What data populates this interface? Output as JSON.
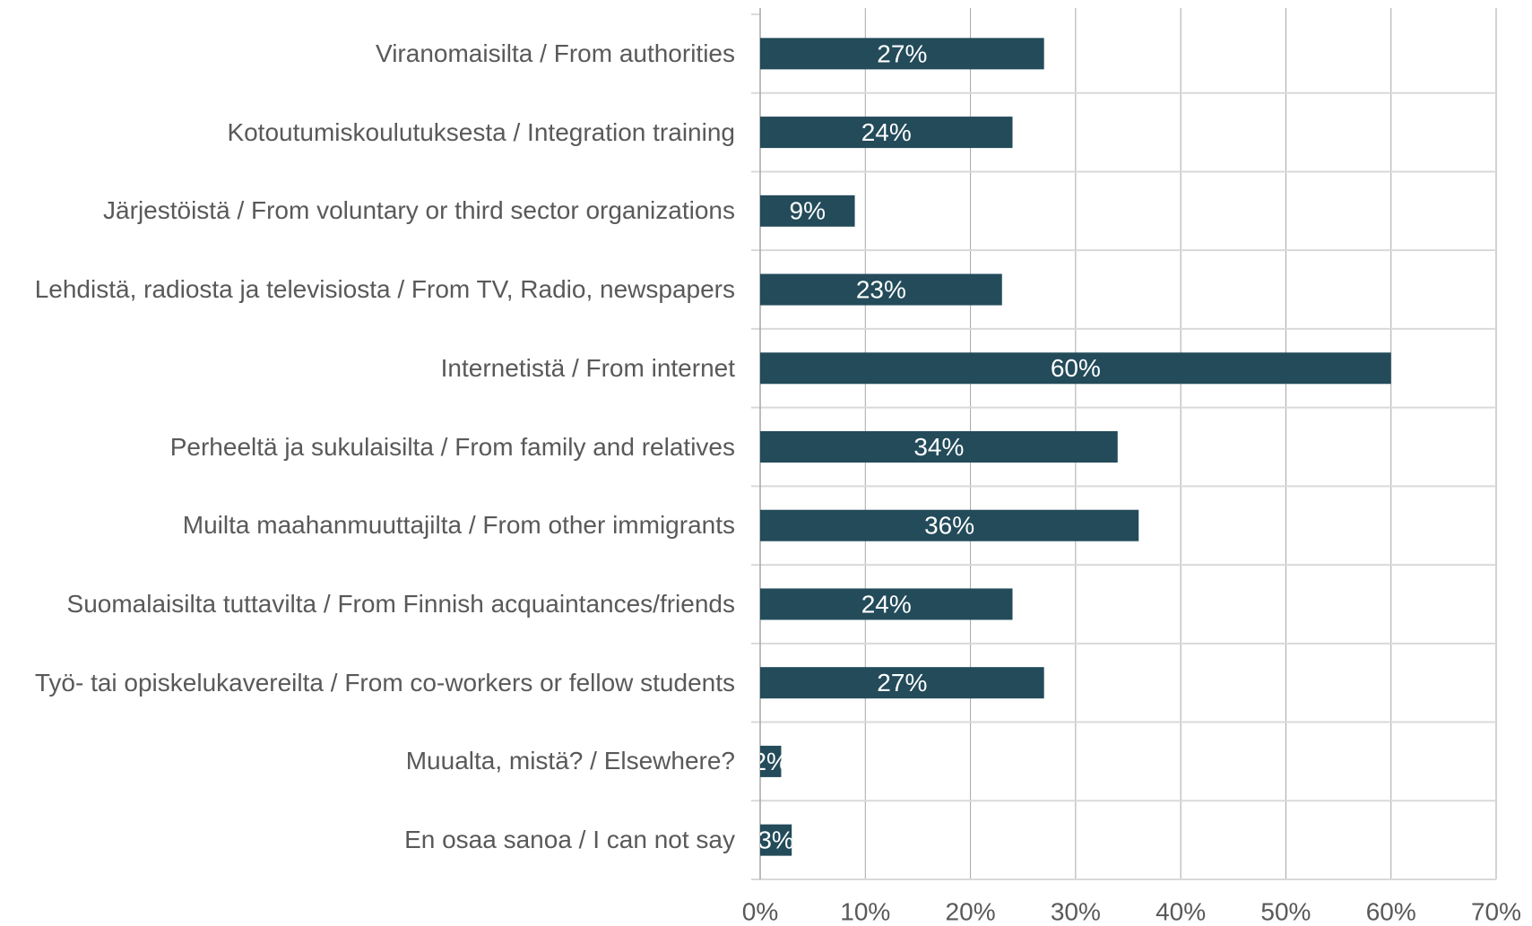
{
  "chart_data": {
    "type": "barh",
    "categories": [
      "Viranomaisilta / From authorities",
      "Kotoutumiskoulutuksesta / Integration training",
      "Järjestöistä / From voluntary or third sector organizations",
      "Lehdistä, radiosta ja televisiosta  / From TV, Radio, newspapers",
      "Internetistä / From internet",
      "Perheeltä ja sukulaisilta / From family and relatives ",
      "Muilta maahanmuuttajilta / From other immigrants",
      "Suomalaisilta tuttavilta / From Finnish acquaintances/friends",
      "Työ- tai opiskelukavereilta / From co-workers or fellow students",
      "Muualta, mistä? / Elsewhere?",
      "En osaa sanoa / I can not say"
    ],
    "values": [
      27,
      24,
      9,
      23,
      60,
      34,
      36,
      24,
      27,
      2,
      3
    ],
    "value_labels": [
      "27%",
      "24%",
      "9%",
      "23%",
      "60%",
      "34%",
      "36%",
      "24%",
      "27%",
      "2%",
      "3%"
    ],
    "color": "#234b5a",
    "xlim": [
      0,
      70
    ],
    "xticks": [
      {
        "value": 0,
        "label": "0%"
      },
      {
        "value": 10,
        "label": "10%"
      },
      {
        "value": 20,
        "label": "20%"
      },
      {
        "value": 30,
        "label": "30%"
      },
      {
        "value": 40,
        "label": "40%"
      },
      {
        "value": 50,
        "label": "50%"
      },
      {
        "value": 60,
        "label": "60%"
      },
      {
        "value": 70,
        "label": "70%"
      }
    ],
    "grid": true
  }
}
